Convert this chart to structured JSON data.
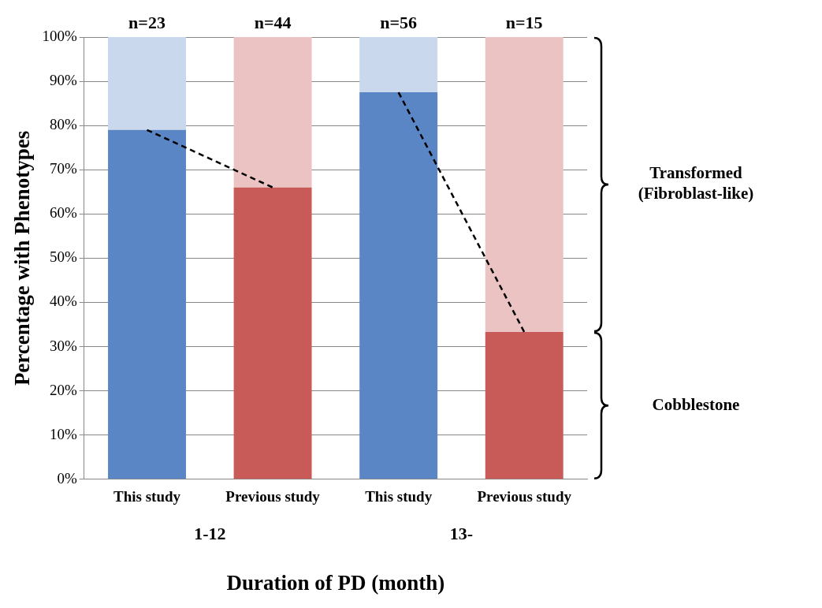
{
  "chart_data": {
    "type": "bar",
    "stacked": true,
    "categories": [
      "This study",
      "Previous study",
      "This study",
      "Previous study"
    ],
    "series": [
      {
        "name": "Cobblestone",
        "colors": [
          "#5b86c6",
          "#c85a58",
          "#5b86c6",
          "#c85a58"
        ],
        "values": [
          79,
          66,
          87.5,
          33.3
        ]
      },
      {
        "name": "Transformed\n(Fibroblast-like)",
        "colors": [
          "#c9d8ec",
          "#ecc3c3",
          "#c9d8ec",
          "#ecc3c3"
        ],
        "values": [
          21,
          34,
          12.5,
          66.7
        ]
      },
      {
        "type": "line",
        "color": "#000000",
        "line_style": "dashed",
        "marker": "none",
        "values": [
          79,
          66,
          null,
          null
        ]
      },
      {
        "type": "line",
        "color": "#000000",
        "line_style": "dashed",
        "marker": "none",
        "values": [
          null,
          null,
          87.5,
          33.3
        ]
      }
    ],
    "xlabel": "Duration of PD (month)",
    "ylabel": "Percentage with Phenotypes",
    "ylim": [
      0,
      100
    ],
    "yticks": [
      {
        "value": 0,
        "label": "0%"
      },
      {
        "value": 10,
        "label": "10%"
      },
      {
        "value": 20,
        "label": "20%"
      },
      {
        "value": 30,
        "label": "30%"
      },
      {
        "value": 40,
        "label": "40%"
      },
      {
        "value": 50,
        "label": "50%"
      },
      {
        "value": 60,
        "label": "60%"
      },
      {
        "value": 70,
        "label": "70%"
      },
      {
        "value": 80,
        "label": "80%"
      },
      {
        "value": 90,
        "label": "90%"
      },
      {
        "value": 100,
        "label": "100%"
      }
    ],
    "grid": "y",
    "legend": false,
    "annotations": [
      "n=23",
      "n=44",
      "n=56",
      "n=15",
      "1-12",
      "13-"
    ]
  }
}
